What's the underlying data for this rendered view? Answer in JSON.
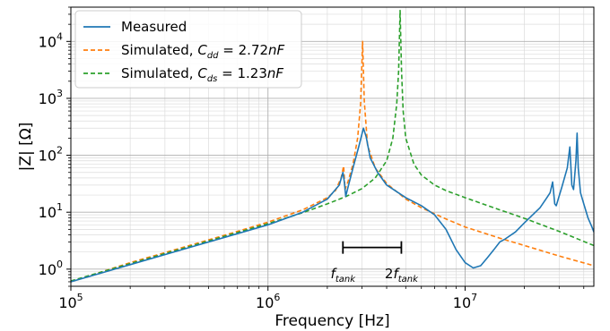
{
  "chart_data": {
    "type": "line",
    "xlabel": "Frequency [Hz]",
    "ylabel": "|Z| [Ω]",
    "x_scale": "log",
    "y_scale": "log",
    "xlim": [
      100000,
      45000000
    ],
    "ylim": [
      0.5,
      40000
    ],
    "grid": "major and minor",
    "legend_position": "top-left",
    "x_ticks": [
      {
        "value": 100000,
        "base": "10",
        "exp": "5"
      },
      {
        "value": 1000000,
        "base": "10",
        "exp": "6"
      },
      {
        "value": 10000000,
        "base": "10",
        "exp": "7"
      }
    ],
    "y_ticks": [
      {
        "value": 1,
        "base": "10",
        "exp": "0"
      },
      {
        "value": 10,
        "base": "10",
        "exp": "1"
      },
      {
        "value": 100,
        "base": "10",
        "exp": "2"
      },
      {
        "value": 1000,
        "base": "10",
        "exp": "3"
      },
      {
        "value": 10000,
        "base": "10",
        "exp": "4"
      }
    ],
    "series": [
      {
        "name": "Measured",
        "style": "solid",
        "color": "#1f77b4",
        "points": [
          [
            100000,
            0.6
          ],
          [
            200000,
            1.2
          ],
          [
            400000,
            2.4
          ],
          [
            700000,
            4.2
          ],
          [
            1000000,
            6.0
          ],
          [
            1500000,
            10
          ],
          [
            2000000,
            17
          ],
          [
            2300000,
            30
          ],
          [
            2400000,
            50
          ],
          [
            2440000,
            34
          ],
          [
            2480000,
            19
          ],
          [
            2550000,
            28
          ],
          [
            2700000,
            60
          ],
          [
            2900000,
            150
          ],
          [
            3050000,
            300
          ],
          [
            3150000,
            210
          ],
          [
            3300000,
            90
          ],
          [
            3600000,
            50
          ],
          [
            4000000,
            30
          ],
          [
            5000000,
            18
          ],
          [
            6000000,
            13
          ],
          [
            7000000,
            9
          ],
          [
            8000000,
            5
          ],
          [
            9000000,
            2.2
          ],
          [
            10000000,
            1.3
          ],
          [
            11000000,
            1.05
          ],
          [
            12000000,
            1.15
          ],
          [
            13000000,
            1.6
          ],
          [
            14000000,
            2.2
          ],
          [
            15000000,
            3.0
          ],
          [
            16000000,
            3.4
          ],
          [
            18000000,
            4.5
          ],
          [
            20000000,
            6.5
          ],
          [
            24000000,
            12
          ],
          [
            26000000,
            18
          ],
          [
            27000000,
            22
          ],
          [
            27800000,
            34
          ],
          [
            28500000,
            14
          ],
          [
            29000000,
            13
          ],
          [
            31000000,
            28
          ],
          [
            33000000,
            60
          ],
          [
            34000000,
            140
          ],
          [
            34800000,
            30
          ],
          [
            35500000,
            25
          ],
          [
            36500000,
            80
          ],
          [
            37000000,
            245
          ],
          [
            37500000,
            60
          ],
          [
            38500000,
            22
          ],
          [
            40000000,
            14
          ],
          [
            42000000,
            8
          ],
          [
            44000000,
            5.5
          ],
          [
            45000000,
            4.5
          ]
        ]
      },
      {
        "name": "Simulated, C_dd = 2.72nF",
        "label_parts": {
          "prefix": "Simulated, ",
          "var": "C",
          "sub": "dd",
          "rest": " = 2.72",
          "unit": "nF"
        },
        "style": "dashed",
        "color": "#ff7f0e",
        "points": [
          [
            100000,
            0.6
          ],
          [
            200000,
            1.3
          ],
          [
            400000,
            2.6
          ],
          [
            700000,
            4.6
          ],
          [
            1000000,
            6.7
          ],
          [
            1500000,
            11
          ],
          [
            2000000,
            18
          ],
          [
            2200000,
            24
          ],
          [
            2350000,
            40
          ],
          [
            2420000,
            65
          ],
          [
            2460000,
            25
          ],
          [
            2550000,
            35
          ],
          [
            2700000,
            70
          ],
          [
            2850000,
            200
          ],
          [
            2950000,
            800
          ],
          [
            3020000,
            10000
          ],
          [
            3080000,
            900
          ],
          [
            3200000,
            150
          ],
          [
            3500000,
            60
          ],
          [
            4000000,
            32
          ],
          [
            5000000,
            17
          ],
          [
            6000000,
            12
          ],
          [
            8000000,
            7.6
          ],
          [
            10000000,
            5.5
          ],
          [
            15000000,
            3.5
          ],
          [
            20000000,
            2.6
          ],
          [
            30000000,
            1.7
          ],
          [
            45000000,
            1.15
          ]
        ]
      },
      {
        "name": "Simulated, C_ds = 1.23nF",
        "label_parts": {
          "prefix": "Simulated, ",
          "var": "C",
          "sub": "ds",
          "rest": " = 1.23",
          "unit": "nF"
        },
        "style": "dashed",
        "color": "#2ca02c",
        "points": [
          [
            100000,
            0.62
          ],
          [
            200000,
            1.25
          ],
          [
            400000,
            2.5
          ],
          [
            700000,
            4.4
          ],
          [
            1000000,
            6.3
          ],
          [
            1500000,
            9.8
          ],
          [
            2000000,
            14
          ],
          [
            2500000,
            19
          ],
          [
            3000000,
            26
          ],
          [
            3500000,
            40
          ],
          [
            4000000,
            80
          ],
          [
            4300000,
            200
          ],
          [
            4500000,
            800
          ],
          [
            4600000,
            3000
          ],
          [
            4680000,
            35000
          ],
          [
            4760000,
            3000
          ],
          [
            4850000,
            600
          ],
          [
            5000000,
            200
          ],
          [
            5500000,
            70
          ],
          [
            6000000,
            45
          ],
          [
            7000000,
            30
          ],
          [
            8000000,
            24
          ],
          [
            10000000,
            18
          ],
          [
            15000000,
            11
          ],
          [
            20000000,
            7.8
          ],
          [
            30000000,
            4.6
          ],
          [
            45000000,
            2.6
          ]
        ]
      }
    ],
    "annotations": [
      {
        "type": "bracket",
        "x_start": 2400000,
        "x_end": 4750000,
        "y": 2.4
      },
      {
        "label_var": "f",
        "label_sub": "tank",
        "label_prefix": "",
        "x": 2400000,
        "y": 1.15
      },
      {
        "label_var": "f",
        "label_sub": "tank",
        "label_prefix": "2",
        "x": 4750000,
        "y": 1.15
      }
    ]
  }
}
